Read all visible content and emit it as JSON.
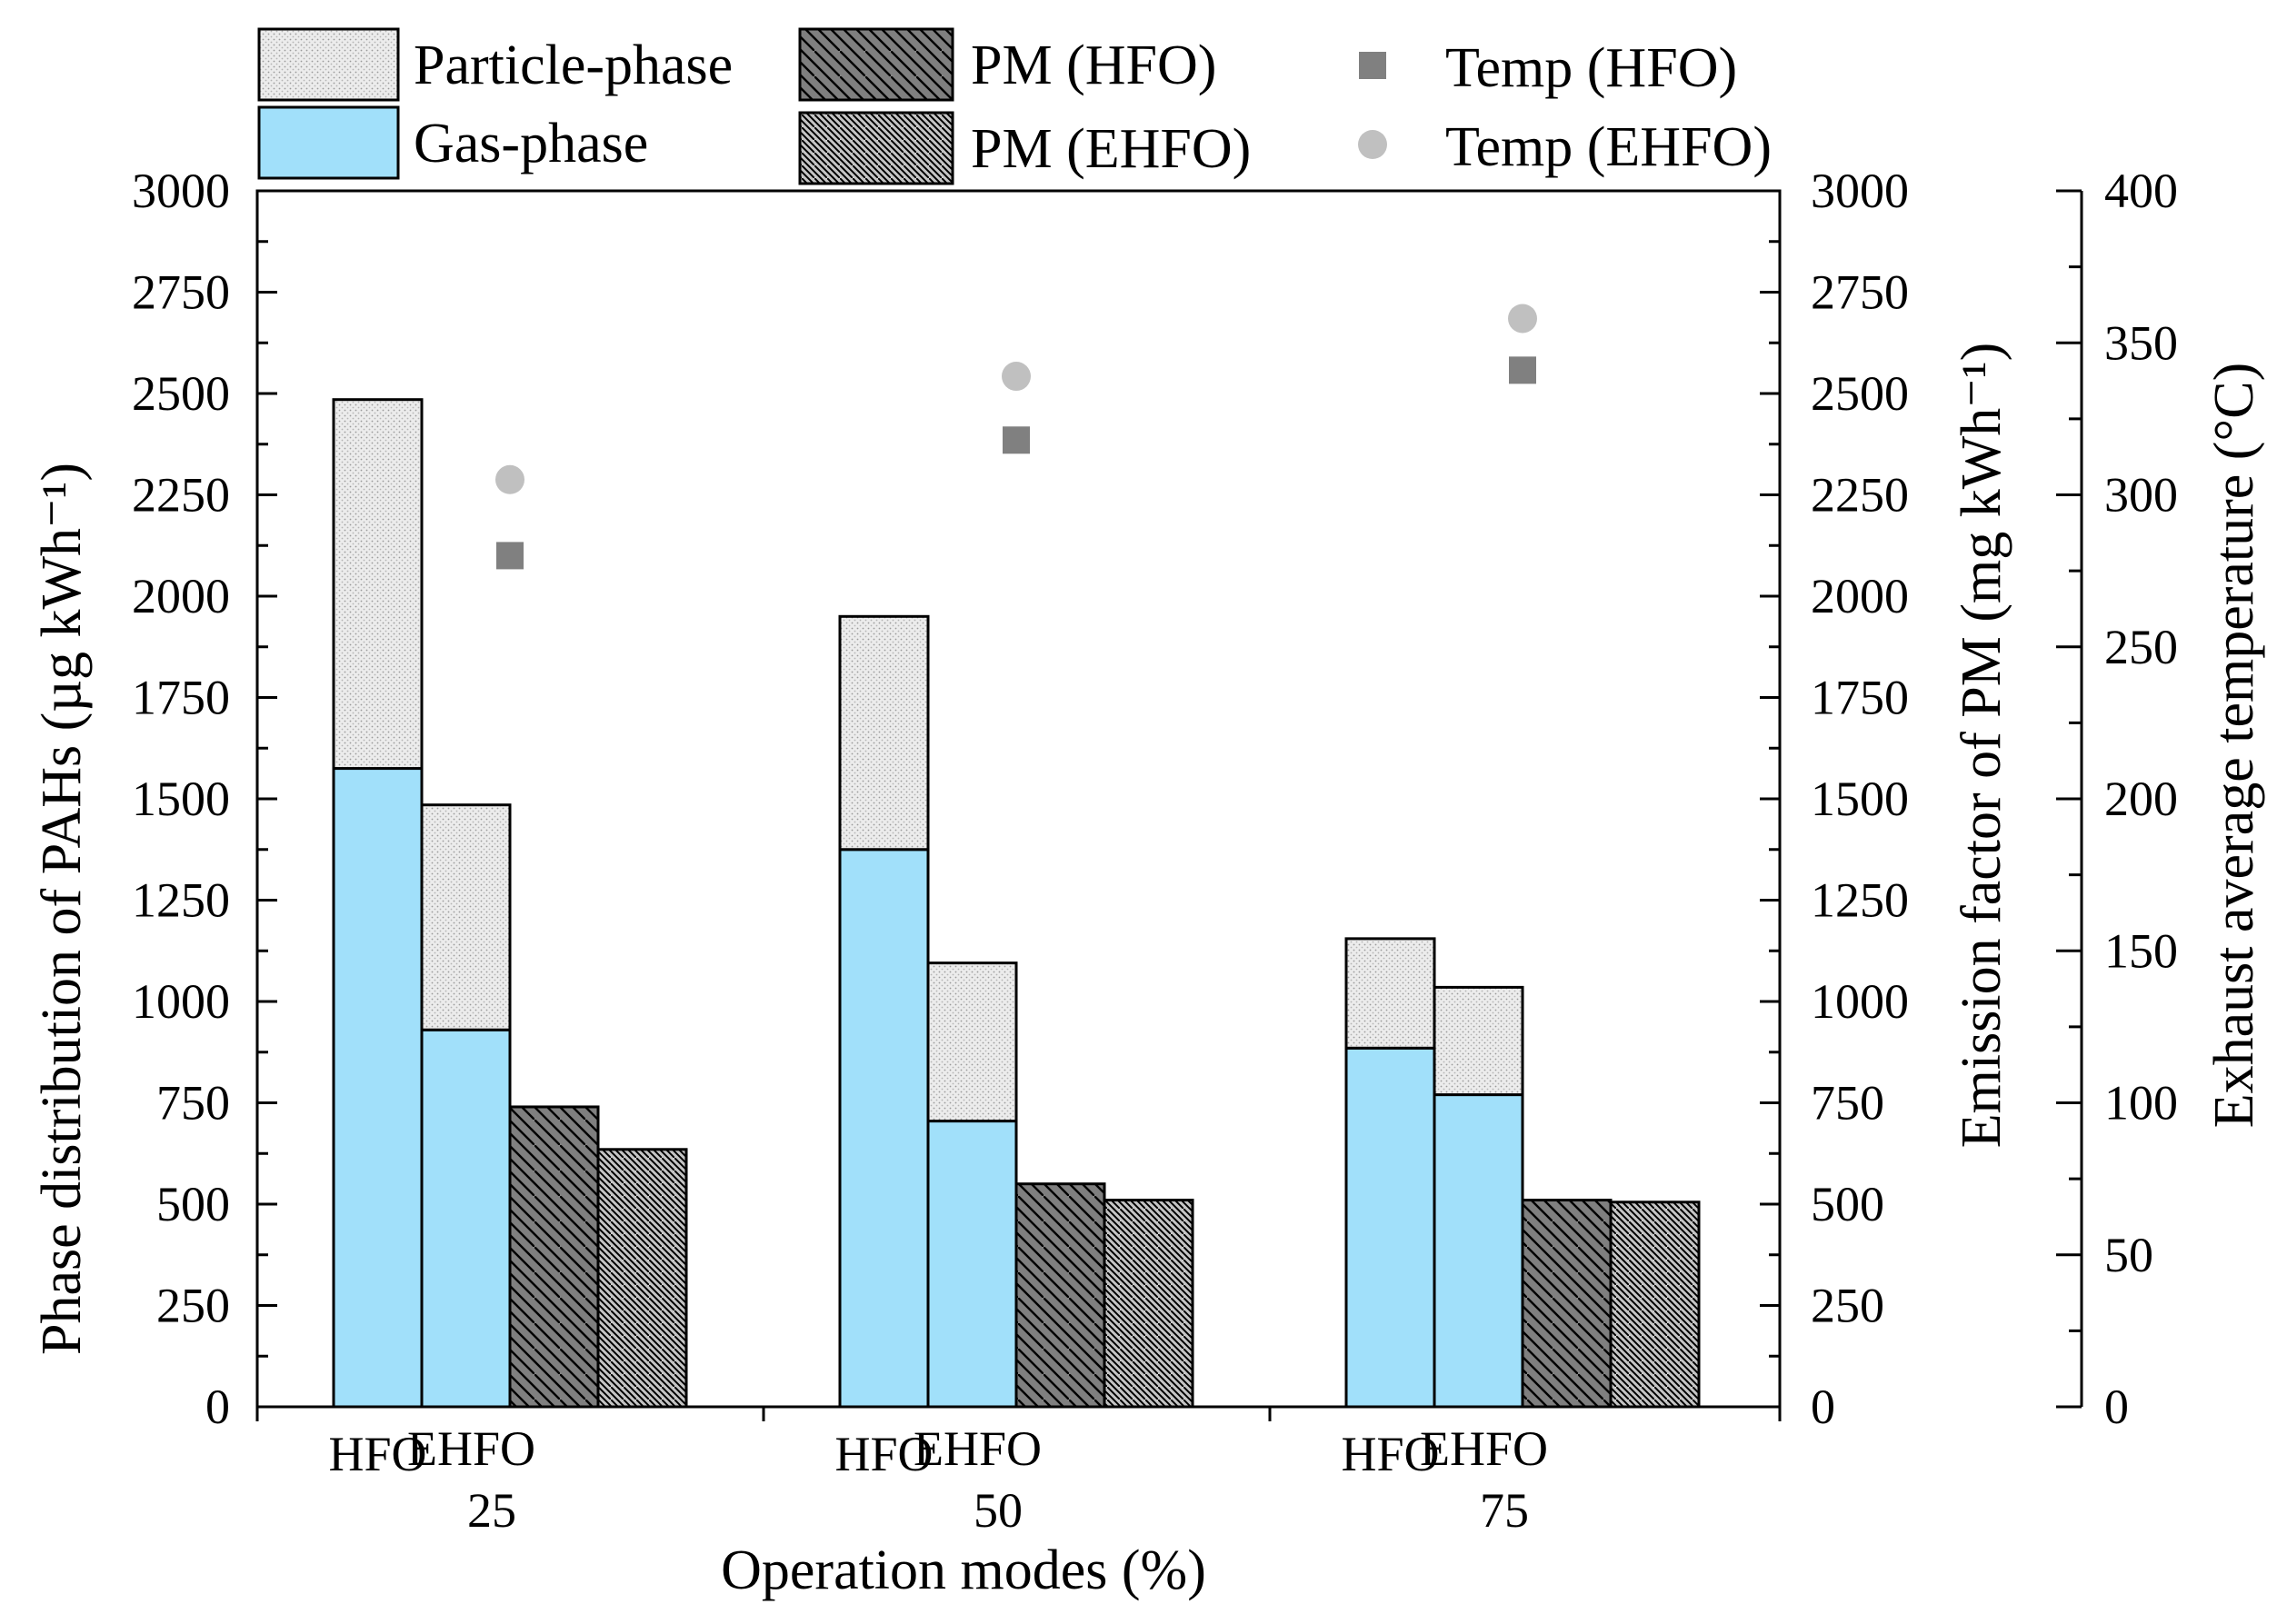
{
  "chart_data": {
    "type": "bar",
    "title": "",
    "xlabel": "Operation modes (%)",
    "ylabel_left": "Phase distribution of PAHs (µg kWh⁻¹)",
    "ylabel_right": "Emission factor of PM (mg kWh⁻¹)",
    "ylabel_right2": "Exhaust average temperature (°C)",
    "categories": [
      "25",
      "50",
      "75"
    ],
    "bar_labels": [
      "HFO",
      "EHFO"
    ],
    "ylim_left": [
      0,
      3000
    ],
    "ylim_right": [
      0,
      3000
    ],
    "ylim_right2": [
      0,
      400
    ],
    "yticks_left": [
      "0",
      "250",
      "500",
      "750",
      "1000",
      "1250",
      "1500",
      "1750",
      "2000",
      "2250",
      "2500",
      "2750",
      "3000"
    ],
    "yticks_right": [
      "0",
      "250",
      "500",
      "750",
      "1000",
      "1250",
      "1500",
      "1750",
      "2000",
      "2250",
      "2500",
      "2750",
      "3000"
    ],
    "yticks_right2": [
      "0",
      "50",
      "100",
      "150",
      "200",
      "250",
      "300",
      "350",
      "400"
    ],
    "pahs": {
      "HFO": {
        "gas": [
          1575,
          1375,
          885
        ],
        "total": [
          2485,
          1950,
          1155
        ]
      },
      "EHFO": {
        "gas": [
          930,
          705,
          770
        ],
        "total": [
          1485,
          1095,
          1035
        ]
      }
    },
    "series": [
      {
        "name": "Gas-phase",
        "axis": "left",
        "HFO": [
          1575,
          1375,
          885
        ],
        "EHFO": [
          930,
          705,
          770
        ]
      },
      {
        "name": "Particle-phase",
        "axis": "left",
        "HFO": [
          910,
          575,
          270
        ],
        "EHFO": [
          555,
          390,
          265
        ]
      },
      {
        "name": "PM (HFO)",
        "axis": "right",
        "values": [
          740,
          550,
          510
        ]
      },
      {
        "name": "PM (EHFO)",
        "axis": "right",
        "values": [
          635,
          510,
          505
        ]
      },
      {
        "name": "Temp (HFO)",
        "axis": "right2",
        "values": [
          280,
          318,
          341
        ]
      },
      {
        "name": "Temp (EHFO)",
        "axis": "right2",
        "values": [
          305,
          339,
          358
        ]
      }
    ],
    "legend": [
      {
        "key": "particle",
        "label": "Particle-phase"
      },
      {
        "key": "gas",
        "label": "Gas-phase"
      },
      {
        "key": "pm_hfo",
        "label": "PM (HFO)"
      },
      {
        "key": "pm_ehfo",
        "label": "PM (EHFO)"
      },
      {
        "key": "temp_hfo",
        "label": "Temp (HFO)"
      },
      {
        "key": "temp_ehfo",
        "label": "Temp (EHFO)"
      }
    ],
    "legend_position": "top",
    "colors": {
      "gas": "#a1e0fa",
      "particle": "#e8e8e8",
      "pm_hfo": "#808080",
      "pm_ehfo": "#c0c0c0",
      "temp_hfo": "#808080",
      "temp_ehfo": "#c0c0c0"
    }
  }
}
